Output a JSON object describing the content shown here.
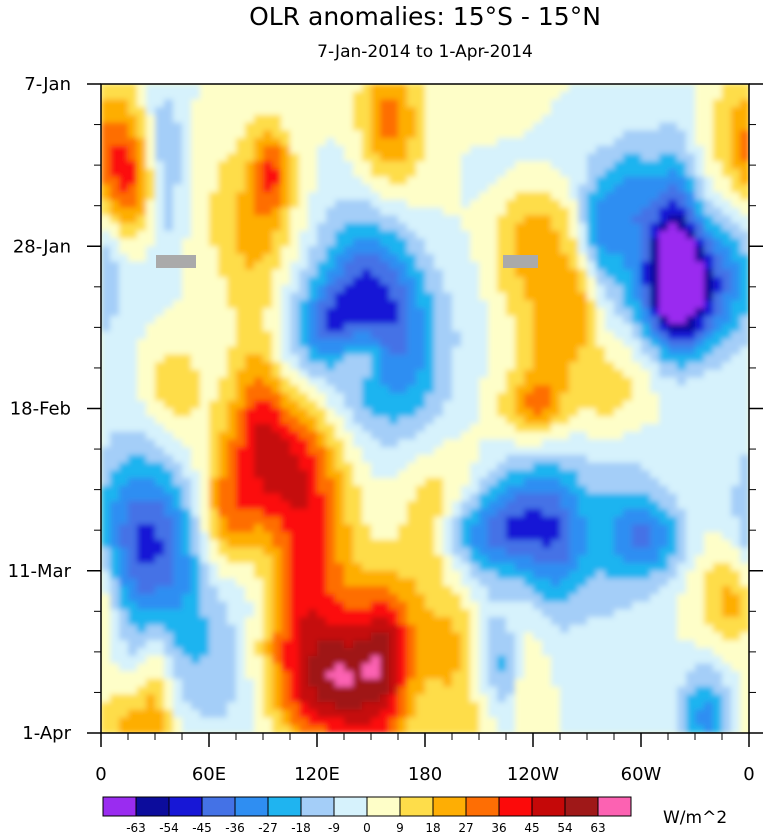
{
  "chart_data": {
    "type": "heatmap",
    "title": "OLR anomalies: 15°S - 15°N",
    "subtitle": "7-Jan-2014 to 1-Apr-2014",
    "x_ticks": [
      "0",
      "60E",
      "120E",
      "180",
      "120W",
      "60W",
      "0"
    ],
    "x_range_deg_east": [
      0,
      360
    ],
    "y_ticks": [
      "7-Jan",
      "28-Jan",
      "18-Feb",
      "11-Mar",
      "1-Apr"
    ],
    "y_range_days_since_7jan": [
      0,
      84
    ],
    "units": "W/m^2",
    "colorbar_levels": [
      "-63",
      "-54",
      "-45",
      "-36",
      "-27",
      "-18",
      "-9",
      "0",
      "9",
      "18",
      "27",
      "36",
      "45",
      "54",
      "63"
    ],
    "colorbar_colors": [
      "#9a2cf0",
      "#0c0c9c",
      "#1717d6",
      "#4472e6",
      "#2f8ef2",
      "#1fb4f0",
      "#a4cef8",
      "#d6f2fc",
      "#fefec8",
      "#fedd4a",
      "#feae04",
      "#fe6e04",
      "#fc0a0a",
      "#c50808",
      "#9f1818",
      "#fc62b2"
    ],
    "missing_color": "#aaaaaa",
    "features": [
      {
        "name": "negative anomaly (convection) over western Pacific",
        "lon": 150,
        "day": 30,
        "value": -55
      },
      {
        "name": "positive anomaly over maritime continent",
        "lon": 100,
        "day": 48,
        "value": 40
      },
      {
        "name": "negative anomaly over Indian Ocean",
        "lon": 25,
        "day": 60,
        "value": -50
      },
      {
        "name": "positive anomaly near date line",
        "lon": 160,
        "day": 78,
        "value": 45
      }
    ]
  }
}
